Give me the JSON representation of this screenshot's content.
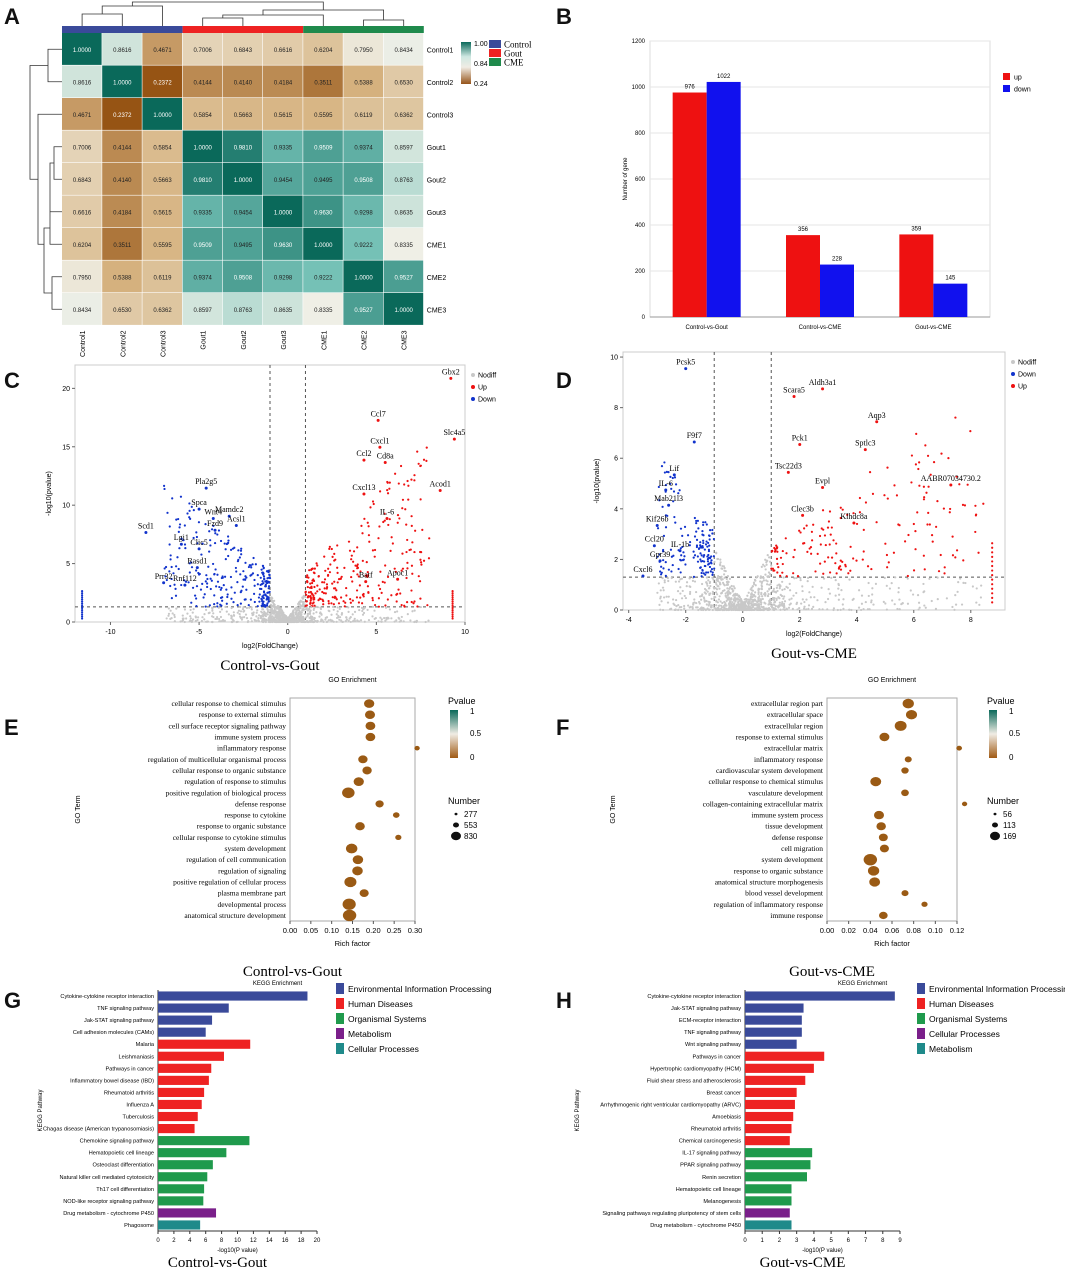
{
  "panels": {
    "A": "A",
    "B": "B",
    "C": "C",
    "D": "D",
    "E": "E",
    "F": "F",
    "G": "G",
    "H": "H"
  },
  "chart_data": [
    {
      "panel": "A",
      "type": "heatmap",
      "title": "",
      "samples": [
        "Control1",
        "Control2",
        "Control3",
        "Gout1",
        "Gout2",
        "Gout3",
        "CME1",
        "CME2",
        "CME3"
      ],
      "matrix": [
        [
          1.0,
          0.8616,
          0.4671,
          0.7006,
          0.6843,
          0.6616,
          0.6204,
          0.795,
          0.8434
        ],
        [
          0.8616,
          1.0,
          0.2372,
          0.4144,
          0.414,
          0.4184,
          0.3511,
          0.5388,
          0.653
        ],
        [
          0.4671,
          0.2372,
          1.0,
          0.5854,
          0.5663,
          0.5615,
          0.5595,
          0.6119,
          0.6362
        ],
        [
          0.7006,
          0.4144,
          0.5854,
          1.0,
          0.981,
          0.9335,
          0.9509,
          0.9374,
          0.8597
        ],
        [
          0.6843,
          0.414,
          0.5663,
          0.981,
          1.0,
          0.9454,
          0.9495,
          0.9508,
          0.8763
        ],
        [
          0.6616,
          0.4184,
          0.5615,
          0.9335,
          0.9454,
          1.0,
          0.963,
          0.9298,
          0.8635
        ],
        [
          0.6204,
          0.3511,
          0.5595,
          0.9509,
          0.9495,
          0.963,
          1.0,
          0.9222,
          0.8335
        ],
        [
          0.795,
          0.5388,
          0.6119,
          0.9374,
          0.9508,
          0.9298,
          0.9222,
          1.0,
          0.9527
        ],
        [
          0.8434,
          0.653,
          0.6362,
          0.8597,
          0.8763,
          0.8635,
          0.8335,
          0.9527,
          1.0
        ]
      ],
      "colorbar_ticks": [
        "1.00",
        "0.84",
        "0.24"
      ],
      "groups": [
        {
          "name": "Control",
          "color": "#3a4a9a"
        },
        {
          "name": "Gout",
          "color": "#ee2222"
        },
        {
          "name": "CME",
          "color": "#1f8a4c"
        }
      ]
    },
    {
      "panel": "B",
      "type": "bar",
      "categories": [
        "Control-vs-Gout",
        "Control-vs-CME",
        "Gout-vs-CME"
      ],
      "series": [
        {
          "name": "up",
          "color": "#ee1111",
          "values": [
            976,
            356,
            359
          ]
        },
        {
          "name": "down",
          "color": "#1111ee",
          "values": [
            1022,
            228,
            145
          ]
        }
      ],
      "ylabel": "Number of gene",
      "ylim": [
        0,
        1200
      ],
      "yticks": [
        "0",
        "200",
        "400",
        "600",
        "800",
        "1000",
        "1200"
      ]
    },
    {
      "panel": "C",
      "type": "scatter",
      "xlabel": "log2(FoldChange)",
      "ylabel": "-log10(pvalue)",
      "xlim": [
        -12,
        10
      ],
      "ylim": [
        0,
        22
      ],
      "xticks": [
        "-10",
        "-5",
        "0",
        "5",
        "10"
      ],
      "yticks": [
        "0",
        "5",
        "10",
        "15",
        "20"
      ],
      "legend": [
        "Nodiff",
        "Up",
        "Down"
      ],
      "caption": "Control-vs-Gout",
      "labels": [
        {
          "text": "Gbx2",
          "x": 9.2,
          "y": 21.2
        },
        {
          "text": "Ccl7",
          "x": 5.1,
          "y": 17.6
        },
        {
          "text": "Slc4a5",
          "x": 9.4,
          "y": 16.0
        },
        {
          "text": "Cxcl1",
          "x": 5.2,
          "y": 15.3
        },
        {
          "text": "Ccl2",
          "x": 4.3,
          "y": 14.2
        },
        {
          "text": "Cd8a",
          "x": 5.5,
          "y": 14.0
        },
        {
          "text": "Acod1",
          "x": 8.6,
          "y": 11.6
        },
        {
          "text": "Cxcl13",
          "x": 4.3,
          "y": 11.3
        },
        {
          "text": "IL-6",
          "x": 5.6,
          "y": 9.2
        },
        {
          "text": "Pla2g5",
          "x": -4.6,
          "y": 11.8
        },
        {
          "text": "Spca",
          "x": -5.0,
          "y": 10.0
        },
        {
          "text": "Mamdc2",
          "x": -3.3,
          "y": 9.4
        },
        {
          "text": "Wnt4",
          "x": -4.2,
          "y": 9.2
        },
        {
          "text": "Acsl1",
          "x": -2.9,
          "y": 8.6
        },
        {
          "text": "Fzd9",
          "x": -4.1,
          "y": 8.2
        },
        {
          "text": "Scd1",
          "x": -8.0,
          "y": 8.0
        },
        {
          "text": "Lgi1",
          "x": -6.0,
          "y": 7.0
        },
        {
          "text": "Clic5",
          "x": -5.0,
          "y": 6.6
        },
        {
          "text": "Rasd1",
          "x": -5.1,
          "y": 5.0
        },
        {
          "text": "Batf",
          "x": 4.4,
          "y": 3.8
        },
        {
          "text": "Apoc1",
          "x": 6.2,
          "y": 4.0
        },
        {
          "text": "Prr32",
          "x": -7.0,
          "y": 3.7
        },
        {
          "text": "Rnf112",
          "x": -5.8,
          "y": 3.5
        }
      ]
    },
    {
      "panel": "D",
      "type": "scatter",
      "xlabel": "log2(FoldChange)",
      "ylabel": "-log10(pvalue)",
      "xlim": [
        -4.2,
        9.2
      ],
      "ylim": [
        0,
        10.2
      ],
      "xticks": [
        "-4",
        "-2",
        "0",
        "2",
        "4",
        "6",
        "8"
      ],
      "yticks": [
        "0",
        "2",
        "4",
        "6",
        "8",
        "10"
      ],
      "legend": [
        "Nodiff",
        "Down",
        "Up"
      ],
      "caption": "Gout-vs-CME",
      "labels": [
        {
          "text": "Pcsk5",
          "x": -2.0,
          "y": 9.7
        },
        {
          "text": "Aldh3a1",
          "x": 2.8,
          "y": 8.9
        },
        {
          "text": "Scara5",
          "x": 1.8,
          "y": 8.6
        },
        {
          "text": "Aqp3",
          "x": 4.7,
          "y": 7.6
        },
        {
          "text": "F9f7",
          "x": -1.7,
          "y": 6.8
        },
        {
          "text": "Pck1",
          "x": 2.0,
          "y": 6.7
        },
        {
          "text": "Sptlc3",
          "x": 4.3,
          "y": 6.5
        },
        {
          "text": "Lif",
          "x": -2.4,
          "y": 5.5
        },
        {
          "text": "Tsc22d3",
          "x": 1.6,
          "y": 5.6
        },
        {
          "text": "IL-6",
          "x": -2.7,
          "y": 4.9
        },
        {
          "text": "Evpl",
          "x": 2.8,
          "y": 5.0
        },
        {
          "text": "AABR07034730.2",
          "x": 7.3,
          "y": 5.1
        },
        {
          "text": "Mab21l3",
          "x": -2.6,
          "y": 4.3
        },
        {
          "text": "Clec3b",
          "x": 2.1,
          "y": 3.9
        },
        {
          "text": "Klhdc8a",
          "x": 3.9,
          "y": 3.6
        },
        {
          "text": "Kif26b",
          "x": -3.0,
          "y": 3.5
        },
        {
          "text": "Ccl20",
          "x": -3.1,
          "y": 2.7
        },
        {
          "text": "IL-1b",
          "x": -2.2,
          "y": 2.5
        },
        {
          "text": "Gpr39",
          "x": -2.9,
          "y": 2.1
        },
        {
          "text": "Cxcl6",
          "x": -3.5,
          "y": 1.5
        }
      ]
    },
    {
      "panel": "E",
      "type": "scatter",
      "title": "GO Enrichment",
      "xlabel": "Rich factor",
      "ylabel": "GO Term",
      "xlim": [
        0,
        0.3
      ],
      "xticks": [
        "0.00",
        "0.05",
        "0.10",
        "0.15",
        "0.20",
        "0.25",
        "0.30"
      ],
      "legend_color_title": "Pvalue",
      "legend_color_ticks": [
        "1",
        "0.5",
        "0"
      ],
      "legend_size_title": "Number",
      "legend_sizes": [
        "277",
        "553",
        "830"
      ],
      "caption": "Control-vs-Gout",
      "terms": [
        "cellular response to chemical stimulus",
        "response to external stimulus",
        "cell surface receptor signaling pathway",
        "immune system process",
        "inflammatory response",
        "regulation of multicellular organismal process",
        "cellular response to organic substance",
        "regulation of response to stimulus",
        "positive regulation of biological process",
        "defense response",
        "response to cytokine",
        "response to organic substance",
        "cellular response to cytokine stimulus",
        "system development",
        "regulation of cell communication",
        "regulation of signaling",
        "positive regulation of cellular process",
        "plasma membrane part",
        "developmental process",
        "anatomical structure development"
      ],
      "rich": [
        0.19,
        0.192,
        0.193,
        0.193,
        0.305,
        0.175,
        0.185,
        0.165,
        0.14,
        0.215,
        0.255,
        0.168,
        0.26,
        0.148,
        0.163,
        0.162,
        0.145,
        0.178,
        0.142,
        0.143
      ],
      "counts": [
        420,
        400,
        380,
        370,
        60,
        330,
        330,
        420,
        700,
        240,
        120,
        360,
        100,
        560,
        450,
        460,
        640,
        310,
        800,
        830
      ]
    },
    {
      "panel": "F",
      "type": "scatter",
      "title": "GO Enrichment",
      "xlabel": "Rich factor",
      "ylabel": "GO Term",
      "xlim": [
        0,
        0.12
      ],
      "xticks": [
        "0.00",
        "0.02",
        "0.04",
        "0.06",
        "0.08",
        "0.10",
        "0.12"
      ],
      "legend_color_title": "Pvalue",
      "legend_color_ticks": [
        "1",
        "0.5",
        "0"
      ],
      "legend_size_title": "Number",
      "legend_sizes": [
        "56",
        "113",
        "169"
      ],
      "caption": "Gout-vs-CME",
      "terms": [
        "extracellular region part",
        "extracellular space",
        "extracellular region",
        "response to external stimulus",
        "extracellular matrix",
        "inflammatory response",
        "cardiovascular system development",
        "cellular response to chemical stimulus",
        "vasculature development",
        "collagen-containing extracellular matrix",
        "immune system process",
        "tissue development",
        "defense response",
        "cell migration",
        "system development",
        "response to organic substance",
        "anatomical structure morphogenesis",
        "blood vessel development",
        "regulation of inflammatory response",
        "immune response"
      ],
      "rich": [
        0.075,
        0.078,
        0.068,
        0.053,
        0.122,
        0.075,
        0.072,
        0.045,
        0.072,
        0.127,
        0.048,
        0.05,
        0.052,
        0.053,
        0.04,
        0.043,
        0.044,
        0.072,
        0.09,
        0.052
      ],
      "counts": [
        110,
        105,
        125,
        80,
        15,
        30,
        35,
        100,
        40,
        12,
        80,
        70,
        60,
        62,
        169,
        110,
        100,
        30,
        20,
        55
      ]
    },
    {
      "panel": "G",
      "type": "bar",
      "title": "KEGG Enrichment",
      "xlabel": "-log10(P value)",
      "ylabel": "KEGG Pathway",
      "xlim": [
        0,
        20
      ],
      "xticks": [
        "0",
        "2",
        "4",
        "6",
        "8",
        "10",
        "12",
        "14",
        "16",
        "18",
        "20"
      ],
      "caption": "Control-vs-Gout",
      "legend": [
        {
          "name": "Environmental Information Processing",
          "color": "#3a4a9a"
        },
        {
          "name": "Human Diseases",
          "color": "#ee2222"
        },
        {
          "name": "Organismal Systems",
          "color": "#1f9a4c"
        },
        {
          "name": "Metabolism",
          "color": "#7a1f8a"
        },
        {
          "name": "Cellular Processes",
          "color": "#1f8a8a"
        }
      ],
      "categories": [
        "Cytokine-cytokine receptor interaction",
        "TNF signaling pathway",
        "Jak-STAT signaling pathway",
        "Cell adhesion molecules (CAMs)",
        "Malaria",
        "Leishmaniasis",
        "Pathways in cancer",
        "Inflammatory bowel disease (IBD)",
        "Rheumatoid arthritis",
        "Influenza A",
        "Tuberculosis",
        "Chagas disease (American trypanosomiasis)",
        "Chemokine signaling pathway",
        "Hematopoietic cell lineage",
        "Osteoclast differentiation",
        "Natural killer cell mediated cytotoxicity",
        "Th17 cell differentiation",
        "NOD-like receptor signaling pathway",
        "Drug metabolism - cytochrome P450",
        "Phagosome"
      ],
      "values": [
        18.8,
        8.9,
        6.8,
        6.0,
        11.6,
        8.3,
        6.7,
        6.4,
        5.8,
        5.5,
        5.0,
        4.6,
        11.5,
        8.6,
        6.9,
        6.2,
        5.8,
        5.7,
        7.3,
        5.3
      ],
      "groups": [
        0,
        0,
        0,
        0,
        1,
        1,
        1,
        1,
        1,
        1,
        1,
        1,
        2,
        2,
        2,
        2,
        2,
        2,
        3,
        4
      ]
    },
    {
      "panel": "H",
      "type": "bar",
      "title": "KEGG Enrichment",
      "xlabel": "-log10(P value)",
      "ylabel": "KEGG Pathway",
      "xlim": [
        0,
        9
      ],
      "xticks": [
        "0",
        "1",
        "2",
        "3",
        "4",
        "5",
        "6",
        "7",
        "8",
        "9"
      ],
      "caption": "Gout-vs-CME",
      "legend": [
        {
          "name": "Environmental Information Processing",
          "color": "#3a4a9a"
        },
        {
          "name": "Human Diseases",
          "color": "#ee2222"
        },
        {
          "name": "Organismal Systems",
          "color": "#1f9a4c"
        },
        {
          "name": "Cellular Processes",
          "color": "#7a1f8a"
        },
        {
          "name": "Metabolism",
          "color": "#1f8a8a"
        }
      ],
      "categories": [
        "Cytokine-cytokine receptor interaction",
        "Jak-STAT signaling pathway",
        "ECM-receptor interaction",
        "TNF signaling pathway",
        "Wnt signaling pathway",
        "Pathways in cancer",
        "Hypertrophic cardiomyopathy (HCM)",
        "Fluid shear stress and atherosclerosis",
        "Breast cancer",
        "Arrhythmogenic right ventricular cardiomyopathy (ARVC)",
        "Amoebiasis",
        "Rheumatoid arthritis",
        "Chemical carcinogenesis",
        "IL-17 signaling pathway",
        "PPAR signaling pathway",
        "Renin secretion",
        "Hematopoietic cell lineage",
        "Melanogenesis",
        "Signaling pathways regulating pluripotency of stem cells",
        "Drug metabolism - cytochrome P450"
      ],
      "values": [
        8.7,
        3.4,
        3.3,
        3.3,
        3.0,
        4.6,
        4.0,
        3.5,
        3.0,
        2.9,
        2.8,
        2.7,
        2.6,
        3.9,
        3.8,
        3.6,
        2.7,
        2.7,
        2.6,
        2.7
      ],
      "groups": [
        0,
        0,
        0,
        0,
        0,
        1,
        1,
        1,
        1,
        1,
        1,
        1,
        1,
        2,
        2,
        2,
        2,
        2,
        3,
        4
      ]
    }
  ]
}
